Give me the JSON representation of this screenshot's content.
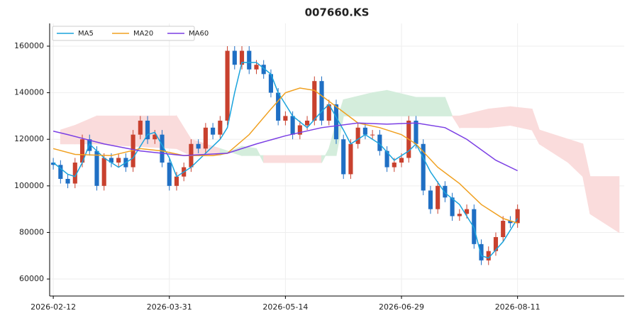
{
  "chart_data": {
    "type": "candlestick",
    "title": "007660.KS",
    "open": [
      110000,
      109000,
      103000,
      101000,
      110000,
      120000,
      115000,
      100000,
      112000,
      110000,
      112000,
      108000,
      122000,
      128000,
      120000,
      122000,
      110000,
      100000,
      104000,
      108000,
      118000,
      116000,
      125000,
      122000,
      128000,
      158000,
      152000,
      158000,
      150000,
      152000,
      148000,
      140000,
      128000,
      130000,
      122000,
      126000,
      128000,
      145000,
      128000,
      135000,
      120000,
      105000,
      118000,
      125000,
      122000,
      122000,
      115000,
      108000,
      110000,
      112000,
      128000,
      118000,
      98000,
      90000,
      100000,
      95000,
      87000,
      88000,
      90000,
      75000,
      68000,
      72000,
      78000,
      85000,
      84000
    ],
    "high": [
      112000,
      111000,
      105000,
      112000,
      122000,
      122000,
      117000,
      114000,
      114000,
      114000,
      114000,
      124000,
      130000,
      130000,
      124000,
      124000,
      112000,
      106000,
      110000,
      120000,
      120000,
      127000,
      127000,
      130000,
      160000,
      160000,
      160000,
      160000,
      154000,
      154000,
      150000,
      142000,
      132000,
      132000,
      128000,
      130000,
      147000,
      147000,
      137000,
      137000,
      122000,
      120000,
      127000,
      127000,
      124000,
      124000,
      117000,
      112000,
      114000,
      130000,
      130000,
      120000,
      100000,
      102000,
      102000,
      97000,
      90000,
      92000,
      92000,
      77000,
      74000,
      80000,
      87000,
      87000,
      92000
    ],
    "low": [
      107000,
      101000,
      99000,
      99000,
      108000,
      113000,
      98000,
      98000,
      108000,
      108000,
      106000,
      106000,
      120000,
      118000,
      118000,
      108000,
      98000,
      98000,
      102000,
      106000,
      114000,
      114000,
      120000,
      120000,
      126000,
      150000,
      150000,
      148000,
      148000,
      146000,
      138000,
      126000,
      126000,
      120000,
      120000,
      124000,
      126000,
      126000,
      126000,
      118000,
      103000,
      103000,
      116000,
      120000,
      120000,
      113000,
      106000,
      106000,
      108000,
      110000,
      116000,
      96000,
      88000,
      88000,
      93000,
      85000,
      85000,
      86000,
      73000,
      66000,
      66000,
      70000,
      76000,
      82000,
      82000
    ],
    "close": [
      109000,
      103000,
      101000,
      110000,
      120000,
      115000,
      100000,
      112000,
      110000,
      112000,
      108000,
      122000,
      128000,
      120000,
      122000,
      110000,
      100000,
      104000,
      108000,
      118000,
      116000,
      125000,
      122000,
      128000,
      158000,
      152000,
      158000,
      150000,
      152000,
      148000,
      140000,
      128000,
      130000,
      122000,
      126000,
      128000,
      145000,
      128000,
      135000,
      120000,
      105000,
      118000,
      125000,
      122000,
      122000,
      115000,
      108000,
      110000,
      112000,
      128000,
      118000,
      98000,
      90000,
      100000,
      95000,
      87000,
      88000,
      90000,
      75000,
      68000,
      72000,
      78000,
      85000,
      84000,
      90000
    ],
    "up_color": "#c8412e",
    "down_color": "#1f6fc4",
    "xlim": [
      -0.5,
      78.7
    ],
    "xticks": [
      {
        "value": 0,
        "label": "2026-02-12"
      },
      {
        "value": 16,
        "label": "2026-03-31"
      },
      {
        "value": 32,
        "label": "2026-05-14"
      },
      {
        "value": 48,
        "label": "2026-06-29"
      },
      {
        "value": 64,
        "label": "2026-08-11"
      }
    ],
    "ylim": [
      52700,
      169750
    ],
    "yticks": [
      60000,
      80000,
      100000,
      120000,
      140000,
      160000
    ],
    "grid": true,
    "legend": "upper left",
    "series": [
      {
        "name": "MA5",
        "color": "#1aa3dc",
        "x": [
          0,
          2,
          3,
          4,
          5,
          7,
          9,
          11,
          13,
          14,
          16,
          17,
          19,
          21,
          23,
          24,
          25,
          26,
          28,
          30,
          31,
          33,
          35,
          37,
          38,
          40,
          41,
          43,
          45,
          47,
          49,
          50,
          52,
          54,
          56,
          58,
          59,
          60,
          62,
          64
        ],
        "values": [
          110000,
          105000,
          104000,
          110000,
          118000,
          112000,
          108000,
          112000,
          122000,
          123000,
          112000,
          104000,
          108000,
          114000,
          120000,
          125000,
          140000,
          153000,
          153000,
          148000,
          140000,
          130000,
          125000,
          132000,
          135000,
          124000,
          118000,
          122000,
          118000,
          111000,
          115000,
          118000,
          106000,
          97000,
          92000,
          82000,
          70000,
          69000,
          76000,
          86000
        ]
      },
      {
        "name": "MA20",
        "color": "#f0a020",
        "x": [
          0,
          3,
          8,
          12,
          15,
          18,
          22,
          24,
          27,
          30,
          32,
          34,
          36,
          39,
          42,
          45,
          48,
          50,
          53,
          56,
          59,
          62,
          64
        ],
        "values": [
          116000,
          113500,
          113000,
          116000,
          115000,
          113000,
          113000,
          114000,
          122000,
          133000,
          140000,
          142000,
          141000,
          134000,
          127000,
          125000,
          122000,
          118000,
          108000,
          101000,
          92000,
          86000,
          84000
        ]
      },
      {
        "name": "MA60",
        "color": "#7b3fe4",
        "x": [
          0,
          2,
          7,
          12,
          18,
          24,
          28,
          32,
          37,
          42,
          46,
          50,
          54,
          57,
          61,
          64
        ],
        "values": [
          123500,
          122000,
          118000,
          115000,
          113000,
          114000,
          118000,
          121500,
          125000,
          127000,
          126500,
          127000,
          125000,
          120000,
          111000,
          106500
        ]
      }
    ],
    "cloud": {
      "up_color": "#d4eddc",
      "down_color": "#fadcdc",
      "x": [
        1,
        3,
        6,
        11,
        17,
        19,
        23,
        26,
        28,
        29,
        37,
        38,
        39,
        40,
        44,
        46,
        50,
        54,
        55,
        56,
        60,
        63,
        66,
        67,
        71,
        73,
        74,
        78
      ],
      "span_a": [
        118000,
        118000,
        118000,
        117000,
        116000,
        113000,
        113000,
        117000,
        116000,
        110000,
        110000,
        116000,
        127000,
        137000,
        140000,
        141000,
        138000,
        138000,
        130000,
        125000,
        125000,
        126000,
        124000,
        118000,
        110000,
        104000,
        88000,
        80000
      ],
      "span_b": [
        124000,
        126000,
        130000,
        130000,
        130000,
        120000,
        116000,
        113000,
        113000,
        113000,
        113000,
        113000,
        113000,
        130000,
        130000,
        130000,
        130000,
        130000,
        130000,
        130000,
        133000,
        134000,
        133000,
        124000,
        120000,
        118000,
        104000,
        104000
      ]
    }
  }
}
